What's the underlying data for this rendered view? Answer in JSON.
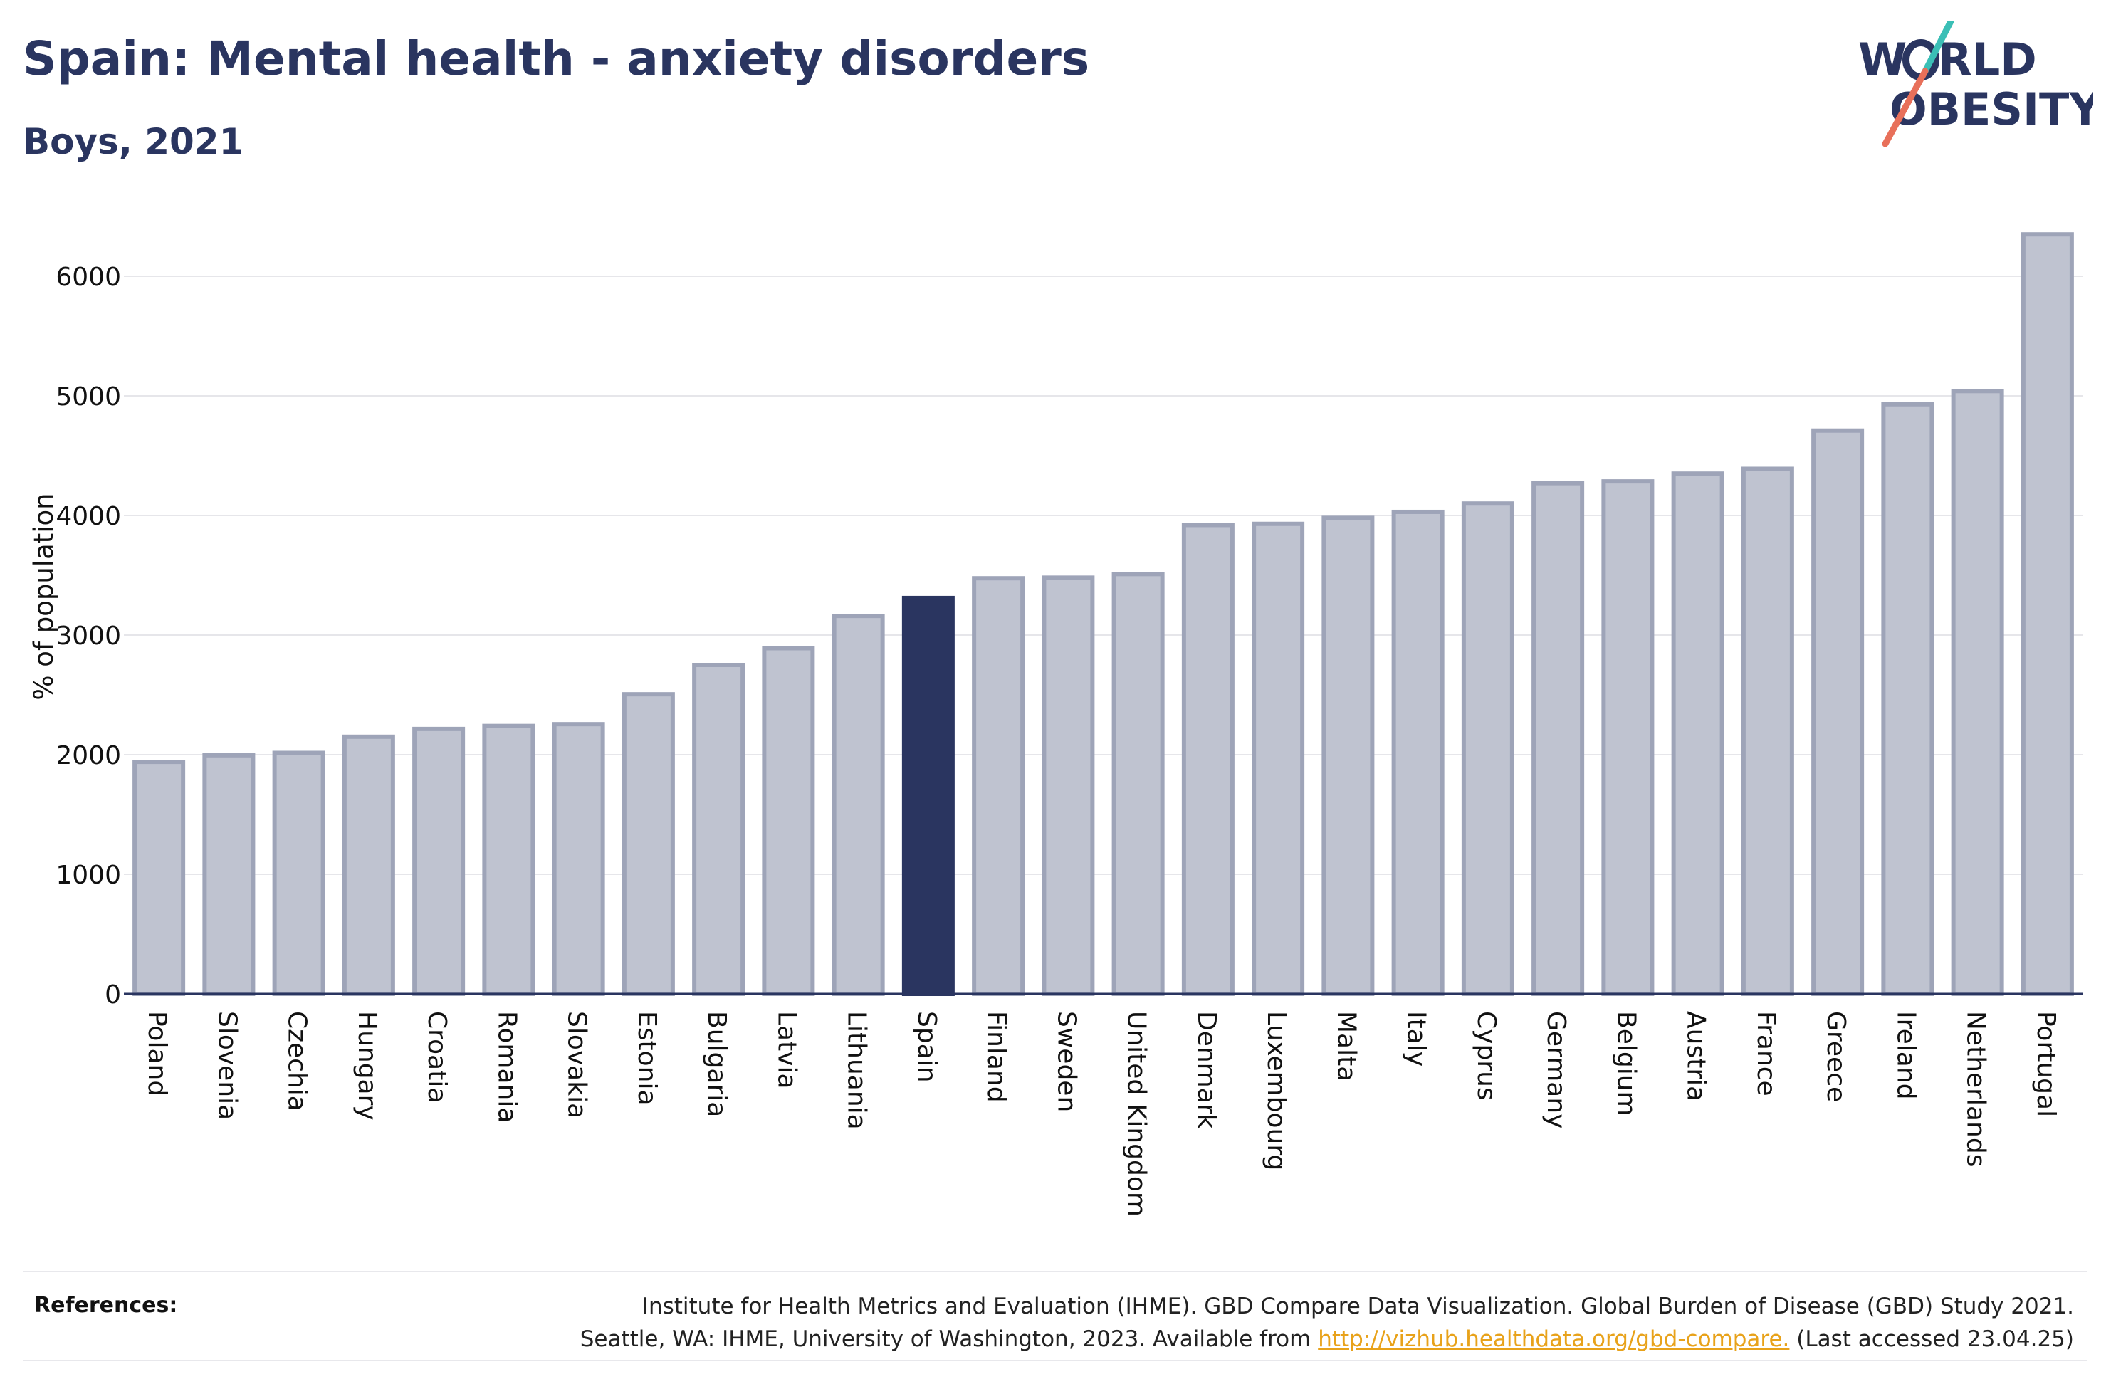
{
  "header": {
    "title": "Spain: Mental health - anxiety disorders",
    "subtitle": "Boys, 2021"
  },
  "logo": {
    "line1": "W RLD",
    "line1_full": "WORLD",
    "line2": "OBESITY",
    "accent_teal": "#3bbfb6",
    "accent_coral": "#e8705a"
  },
  "colors": {
    "bar_default": "#bfc3d0",
    "bar_border": "#9ea4b8",
    "bar_highlight": "#2a3560",
    "text_primary": "#2a3560",
    "link": "#e8a21a"
  },
  "chart_data": {
    "type": "bar",
    "title": "Spain: Mental health - anxiety disorders",
    "subtitle": "Boys, 2021",
    "xlabel": "",
    "ylabel": "% of population",
    "ylim": [
      0,
      6500
    ],
    "yticks": [
      0,
      1000,
      2000,
      3000,
      4000,
      5000,
      6000
    ],
    "grid": true,
    "highlight": "Spain",
    "categories": [
      "Poland",
      "Slovenia",
      "Czechia",
      "Hungary",
      "Croatia",
      "Romania",
      "Slovakia",
      "Estonia",
      "Bulgaria",
      "Latvia",
      "Lithuania",
      "Spain",
      "Finland",
      "Sweden",
      "United Kingdom",
      "Denmark",
      "Luxembourg",
      "Malta",
      "Italy",
      "Cyprus",
      "Germany",
      "Belgium",
      "Austria",
      "France",
      "Greece",
      "Ireland",
      "Netherlands",
      "Portugal"
    ],
    "values": [
      1940,
      1995,
      2015,
      2150,
      2215,
      2240,
      2255,
      2505,
      2750,
      2890,
      3160,
      3310,
      3475,
      3480,
      3510,
      3920,
      3930,
      3980,
      4030,
      4100,
      4270,
      4285,
      4350,
      4390,
      4710,
      4930,
      5040,
      6350
    ]
  },
  "references": {
    "label": "References:",
    "line1": "Institute for Health Metrics and Evaluation (IHME). GBD Compare Data Visualization. Global Burden of Disease (GBD) Study 2021.",
    "line2_prefix": "Seattle, WA: IHME, University of Washington, 2023. Available from ",
    "link_text": "http://vizhub.healthdata.org/gbd-compare.",
    "line2_suffix": " (Last accessed 23.04.25)"
  }
}
